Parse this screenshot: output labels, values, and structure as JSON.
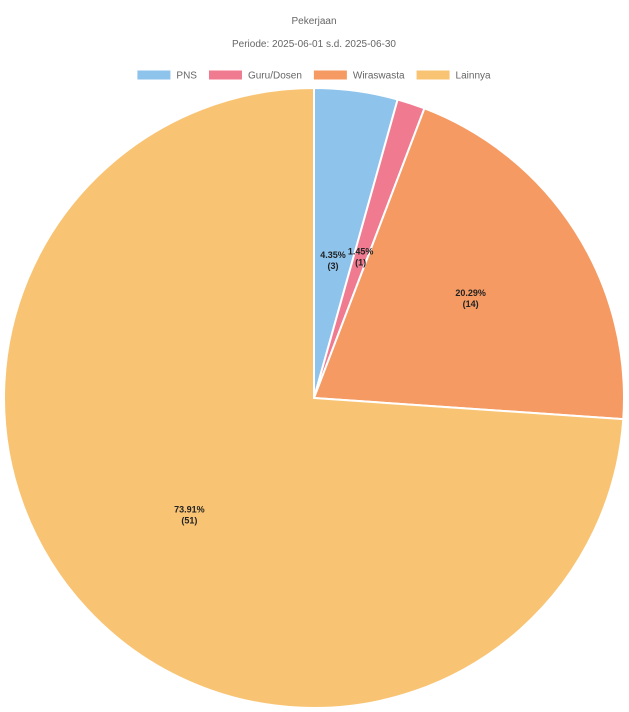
{
  "chart_data": {
    "type": "pie",
    "title": "Pekerjaan",
    "subtitle": "Periode: 2025-06-01 s.d. 2025-06-30",
    "legend_position": "top",
    "categories": [
      "PNS",
      "Guru/Dosen",
      "Wiraswasta",
      "Lainnya"
    ],
    "values": [
      3,
      1,
      14,
      51
    ],
    "percent_labels": [
      "4.35%",
      "1.45%",
      "20.29%",
      "73.91%"
    ],
    "count_labels": [
      "(3)",
      "(1)",
      "(14)",
      "(51)"
    ],
    "colors": [
      "#8ec3ec",
      "#f07a8f",
      "#f59a62",
      "#f8c474"
    ],
    "slice_border_color": "#ffffff"
  }
}
